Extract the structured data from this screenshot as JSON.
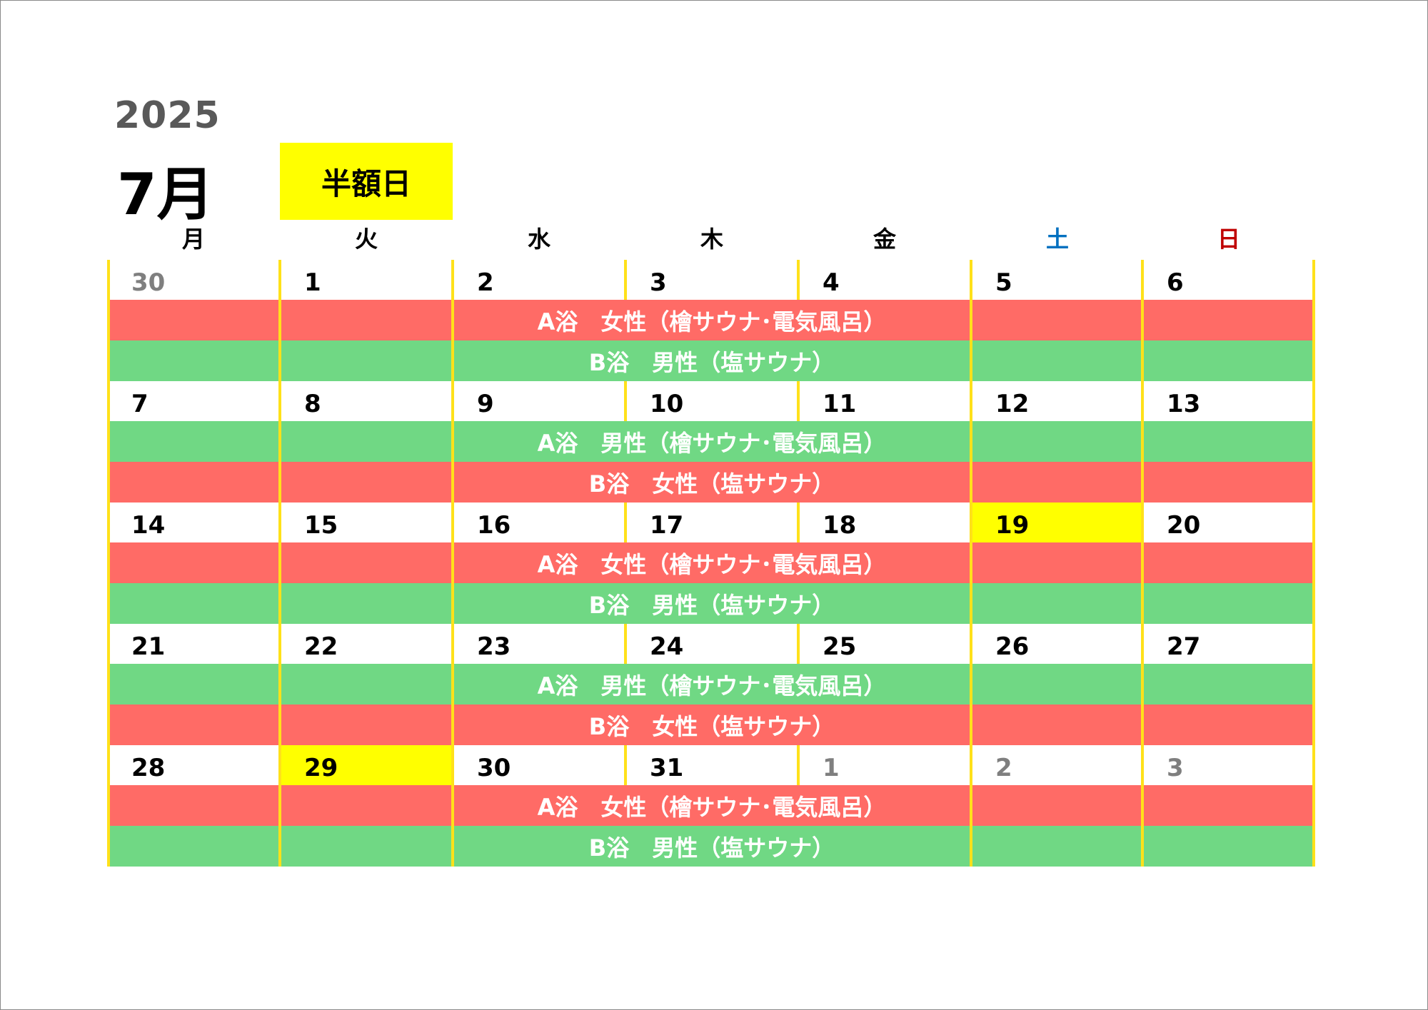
{
  "header": {
    "year": "2025",
    "month": "7月",
    "legend_label": "半額日"
  },
  "weekdays": [
    "月",
    "火",
    "水",
    "木",
    "金",
    "土",
    "日"
  ],
  "colors": {
    "legend": "#ffff00",
    "women_band": "#ff6b66",
    "men_band": "#70d884",
    "saturday": "#0070c0",
    "sunday": "#c00000",
    "other_month_day": "#7f7f7f",
    "grid_line": "#ffe11a"
  },
  "weeks": [
    {
      "days": [
        {
          "label": "30",
          "other_month": true,
          "half_price": false
        },
        {
          "label": "1",
          "other_month": false,
          "half_price": false
        },
        {
          "label": "2",
          "other_month": false,
          "half_price": false
        },
        {
          "label": "3",
          "other_month": false,
          "half_price": false
        },
        {
          "label": "4",
          "other_month": false,
          "half_price": false
        },
        {
          "label": "5",
          "other_month": false,
          "half_price": false
        },
        {
          "label": "6",
          "other_month": false,
          "half_price": false
        }
      ],
      "bands": [
        {
          "text": "A浴　女性（檜サウナ･電気風呂）",
          "color": "red"
        },
        {
          "text": "B浴　男性（塩サウナ）",
          "color": "green"
        }
      ]
    },
    {
      "days": [
        {
          "label": "7",
          "other_month": false,
          "half_price": false
        },
        {
          "label": "8",
          "other_month": false,
          "half_price": false
        },
        {
          "label": "9",
          "other_month": false,
          "half_price": false
        },
        {
          "label": "10",
          "other_month": false,
          "half_price": false
        },
        {
          "label": "11",
          "other_month": false,
          "half_price": false
        },
        {
          "label": "12",
          "other_month": false,
          "half_price": false
        },
        {
          "label": "13",
          "other_month": false,
          "half_price": false
        }
      ],
      "bands": [
        {
          "text": "A浴　男性（檜サウナ･電気風呂）",
          "color": "green"
        },
        {
          "text": "B浴　女性（塩サウナ）",
          "color": "red"
        }
      ]
    },
    {
      "days": [
        {
          "label": "14",
          "other_month": false,
          "half_price": false
        },
        {
          "label": "15",
          "other_month": false,
          "half_price": false
        },
        {
          "label": "16",
          "other_month": false,
          "half_price": false
        },
        {
          "label": "17",
          "other_month": false,
          "half_price": false
        },
        {
          "label": "18",
          "other_month": false,
          "half_price": false
        },
        {
          "label": "19",
          "other_month": false,
          "half_price": true
        },
        {
          "label": "20",
          "other_month": false,
          "half_price": false
        }
      ],
      "bands": [
        {
          "text": "A浴　女性（檜サウナ･電気風呂）",
          "color": "red"
        },
        {
          "text": "B浴　男性（塩サウナ）",
          "color": "green"
        }
      ]
    },
    {
      "days": [
        {
          "label": "21",
          "other_month": false,
          "half_price": false
        },
        {
          "label": "22",
          "other_month": false,
          "half_price": false
        },
        {
          "label": "23",
          "other_month": false,
          "half_price": false
        },
        {
          "label": "24",
          "other_month": false,
          "half_price": false
        },
        {
          "label": "25",
          "other_month": false,
          "half_price": false
        },
        {
          "label": "26",
          "other_month": false,
          "half_price": false
        },
        {
          "label": "27",
          "other_month": false,
          "half_price": false
        }
      ],
      "bands": [
        {
          "text": "A浴　男性（檜サウナ･電気風呂）",
          "color": "green"
        },
        {
          "text": "B浴　女性（塩サウナ）",
          "color": "red"
        }
      ]
    },
    {
      "days": [
        {
          "label": "28",
          "other_month": false,
          "half_price": false
        },
        {
          "label": "29",
          "other_month": false,
          "half_price": true
        },
        {
          "label": "30",
          "other_month": false,
          "half_price": false
        },
        {
          "label": "31",
          "other_month": false,
          "half_price": false
        },
        {
          "label": "1",
          "other_month": true,
          "half_price": false
        },
        {
          "label": "2",
          "other_month": true,
          "half_price": false
        },
        {
          "label": "3",
          "other_month": true,
          "half_price": false
        }
      ],
      "bands": [
        {
          "text": "A浴　女性（檜サウナ･電気風呂）",
          "color": "red"
        },
        {
          "text": "B浴　男性（塩サウナ）",
          "color": "green"
        }
      ]
    }
  ]
}
